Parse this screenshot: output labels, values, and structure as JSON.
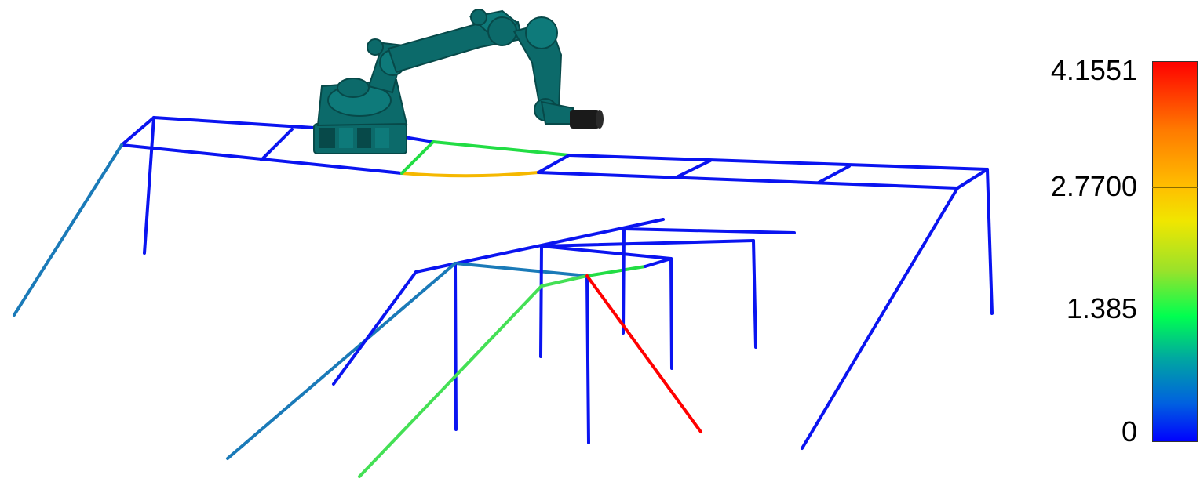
{
  "legend": {
    "labels": [
      "4.1551",
      "2.7700",
      "1.385",
      "0"
    ],
    "gradient_colors": [
      "#ff0000",
      "#ff7a00",
      "#ffbf00",
      "#f0e600",
      "#9ae22a",
      "#00ff50",
      "#00a8a0",
      "#0060e0",
      "#0000ff"
    ]
  },
  "colors": {
    "robot": "#0c6a6a",
    "robot_dark": "#074949",
    "tool": "#1a1a1a",
    "low": "#0a14f0",
    "mid_low": "#1a7ab8",
    "green": "#22dd44",
    "green_light": "#44e055",
    "yellow": "#f5b800",
    "red": "#ff0000"
  }
}
